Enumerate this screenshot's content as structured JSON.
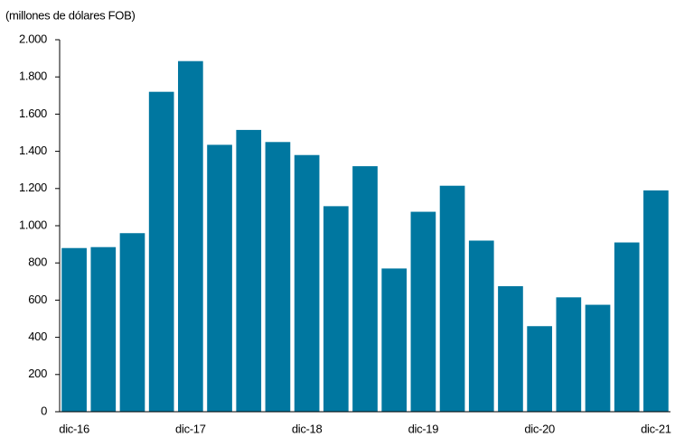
{
  "chart_data": {
    "type": "bar",
    "y_label": "(millones de dólares FOB)",
    "categories": [
      "dic-16",
      null,
      null,
      null,
      "dic-17",
      null,
      null,
      null,
      "dic-18",
      null,
      null,
      null,
      "dic-19",
      null,
      null,
      null,
      "dic-20",
      null,
      null,
      null,
      "dic-21"
    ],
    "values": [
      880,
      885,
      960,
      1720,
      1885,
      1435,
      1515,
      1450,
      1380,
      1105,
      1320,
      770,
      1075,
      1215,
      920,
      675,
      460,
      615,
      575,
      910,
      1190
    ],
    "color": "#0077a0",
    "ylim": [
      0,
      2000
    ],
    "yticks": [
      0,
      200,
      400,
      600,
      800,
      {
        "value": 1000,
        "label": "1.000"
      },
      {
        "value": 1200,
        "label": "1.200"
      },
      {
        "value": 1400,
        "label": "1.400"
      },
      {
        "value": 1600,
        "label": "1.600"
      },
      {
        "value": 1800,
        "label": "1.800"
      },
      {
        "value": 2000,
        "label": "2.000"
      }
    ],
    "grid": false
  }
}
